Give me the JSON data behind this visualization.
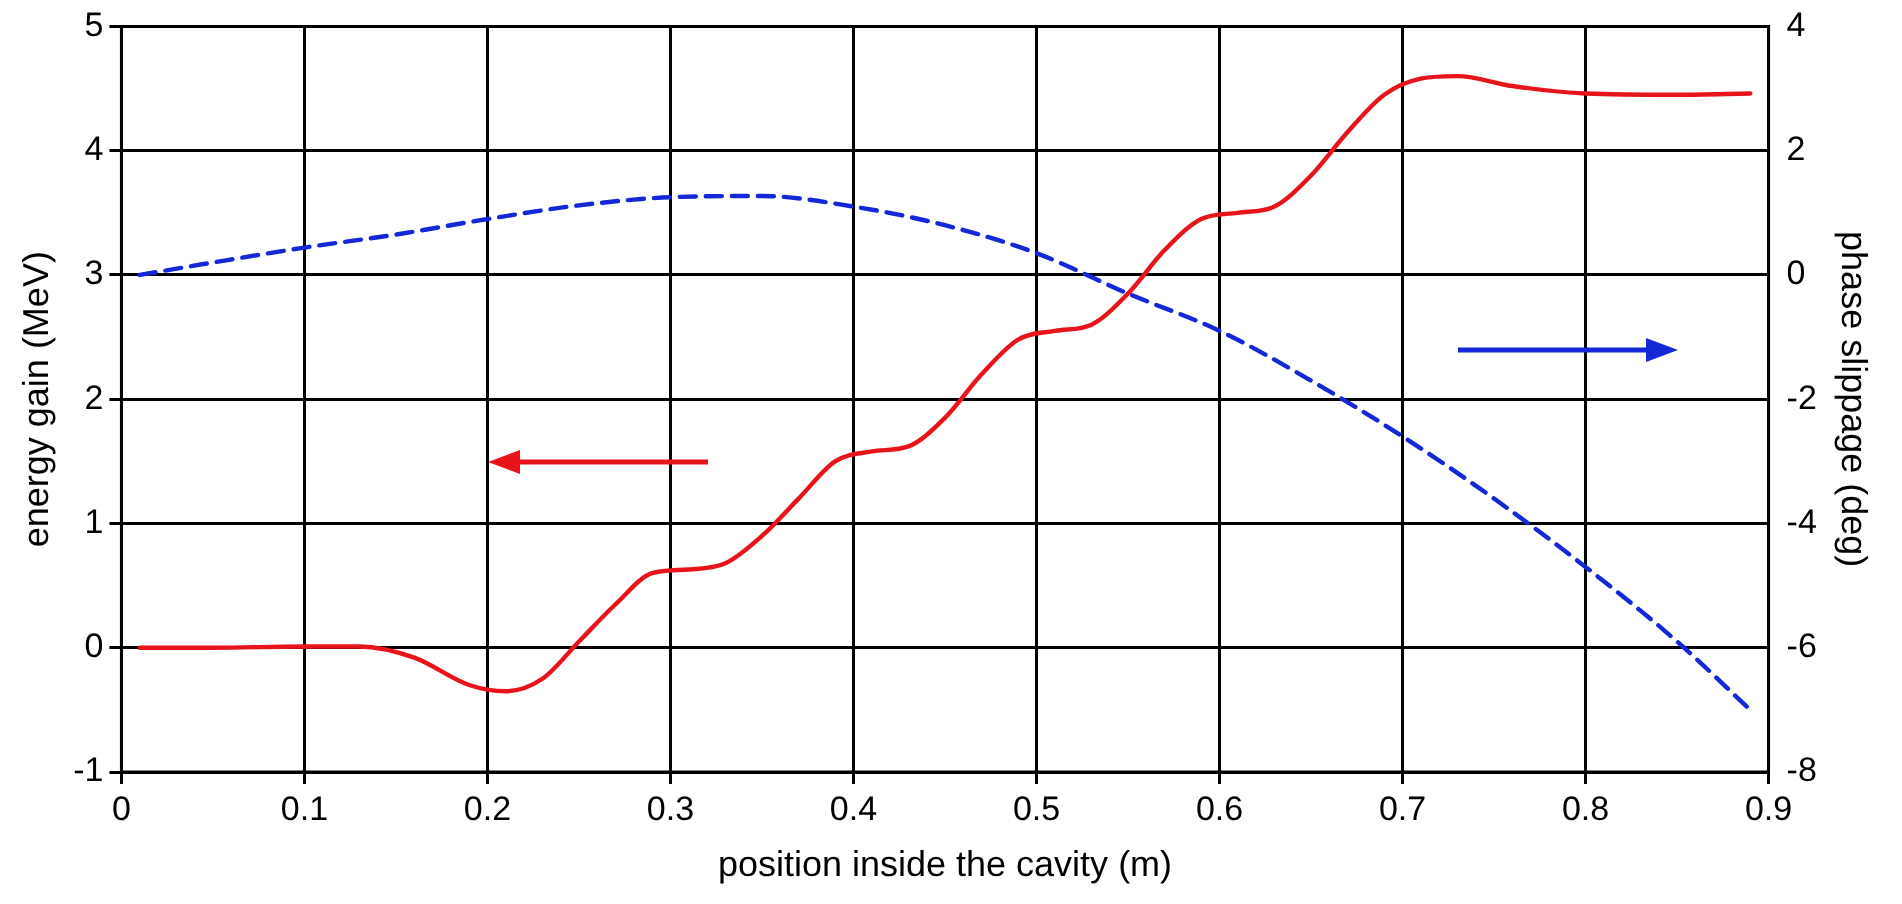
{
  "chart_data": {
    "type": "line",
    "xlabel": "position inside the cavity (m)",
    "ylabel": "energy gain (MeV)",
    "y2label": "phase slippage (deg)",
    "xlim": [
      0,
      0.9
    ],
    "xticks": [
      0,
      0.1,
      0.2,
      0.3,
      0.4,
      0.5,
      0.6,
      0.7,
      0.8,
      0.9
    ],
    "ylim": [
      -1,
      5
    ],
    "yticks": [
      -1,
      0,
      1,
      2,
      3,
      4,
      5
    ],
    "y2lim": [
      -8,
      4
    ],
    "y2ticks": [
      -8,
      -6,
      -4,
      -2,
      0,
      2,
      4
    ],
    "grid": true,
    "legend": false,
    "marker": "none",
    "series": [
      {
        "color": "#e8141c",
        "line_style": "solid",
        "x": [
          0.01,
          0.05,
          0.1,
          0.13,
          0.16,
          0.19,
          0.21,
          0.23,
          0.25,
          0.27,
          0.29,
          0.31,
          0.33,
          0.35,
          0.37,
          0.39,
          0.41,
          0.43,
          0.45,
          0.47,
          0.49,
          0.51,
          0.53,
          0.55,
          0.57,
          0.59,
          0.61,
          0.63,
          0.65,
          0.67,
          0.69,
          0.71,
          0.73,
          0.76,
          0.8,
          0.85,
          0.89
        ],
        "values": [
          0,
          0,
          0.01,
          0.01,
          -0.08,
          -0.3,
          -0.35,
          -0.25,
          0.05,
          0.35,
          0.6,
          0.63,
          0.68,
          0.9,
          1.2,
          1.5,
          1.58,
          1.62,
          1.85,
          2.2,
          2.48,
          2.55,
          2.6,
          2.85,
          3.2,
          3.45,
          3.5,
          3.55,
          3.8,
          4.15,
          4.45,
          4.58,
          4.6,
          4.52,
          4.46,
          4.45,
          4.46
        ]
      },
      {
        "color": "#1428d8",
        "line_style": "dashed",
        "axis": "y2",
        "x": [
          0.01,
          0.05,
          0.1,
          0.15,
          0.2,
          0.25,
          0.3,
          0.35,
          0.4,
          0.45,
          0.5,
          0.55,
          0.6,
          0.65,
          0.7,
          0.75,
          0.8,
          0.85,
          0.89
        ],
        "values": [
          0,
          0.2,
          0.44,
          0.65,
          0.9,
          1.12,
          1.25,
          1.27,
          1.1,
          0.8,
          0.35,
          -0.3,
          -0.9,
          -1.7,
          -2.6,
          -3.6,
          -4.7,
          -5.9,
          -7.0
        ]
      }
    ]
  }
}
